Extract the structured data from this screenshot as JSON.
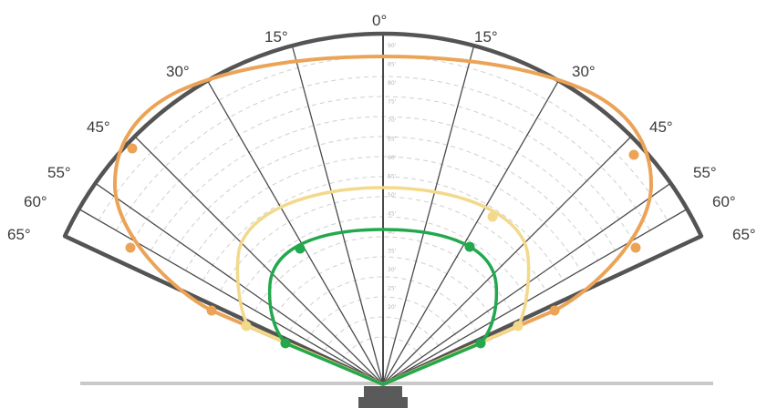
{
  "diagram": {
    "angle_labels": [
      {
        "side": "left",
        "text": "65°",
        "deg": 65
      },
      {
        "side": "left",
        "text": "60°",
        "deg": 60
      },
      {
        "side": "left",
        "text": "55°",
        "deg": 55
      },
      {
        "side": "left",
        "text": "45°",
        "deg": 45
      },
      {
        "side": "left",
        "text": "30°",
        "deg": 30
      },
      {
        "side": "left",
        "text": "15°",
        "deg": 15
      },
      {
        "side": "center",
        "text": "0°",
        "deg": 0
      },
      {
        "side": "right",
        "text": "15°",
        "deg": 15
      },
      {
        "side": "right",
        "text": "30°",
        "deg": 30
      },
      {
        "side": "right",
        "text": "45°",
        "deg": 45
      },
      {
        "side": "right",
        "text": "55°",
        "deg": 55
      },
      {
        "side": "right",
        "text": "60°",
        "deg": 60
      },
      {
        "side": "right",
        "text": "65°",
        "deg": 65
      }
    ],
    "scale_labels": [
      "90'",
      "85'",
      "80'",
      "75'",
      "70'",
      "65'",
      "60'",
      "55'",
      "50'",
      "45'",
      "40'",
      "35'",
      "30'",
      "25'",
      "20'"
    ],
    "colors": {
      "outline": "#545454",
      "ray": "#4a4a4a",
      "grid": "#cfcfcf",
      "ground": "#c9c9c9",
      "sensor": "#5a5a5a",
      "orange": "#eba457",
      "yellow": "#f3d98a",
      "green": "#23a84e"
    },
    "curves": [
      {
        "name": "orange",
        "color": "#eba457",
        "width": 4
      },
      {
        "name": "yellow",
        "color": "#f3d98a",
        "width": 3.5
      },
      {
        "name": "green",
        "color": "#23a84e",
        "width": 3.5
      }
    ]
  }
}
